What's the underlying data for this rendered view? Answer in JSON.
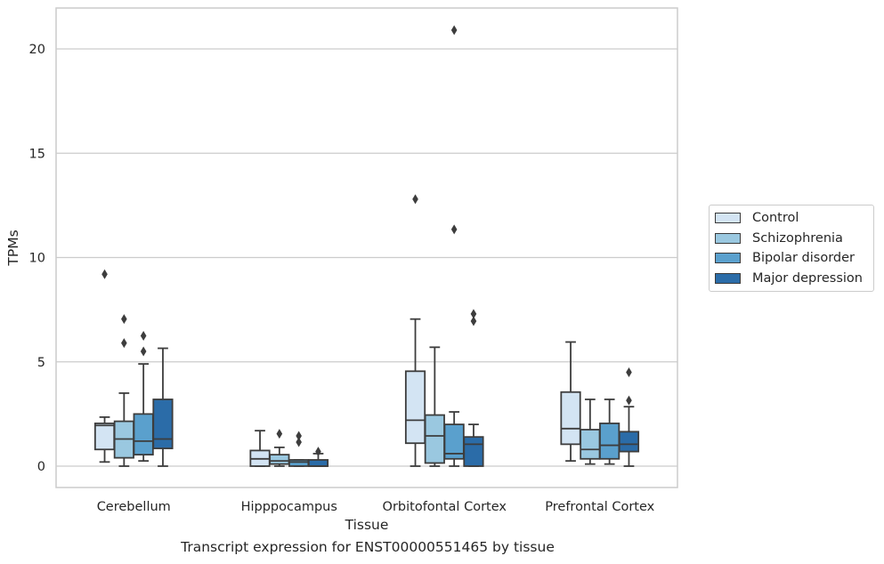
{
  "chart_data": {
    "type": "box",
    "xlabel": "Tissue",
    "ylabel": "TPMs",
    "caption": "Transcript expression for ENST00000551465 by tissue",
    "ylim": [
      -1,
      22
    ],
    "yticks": [
      0,
      5,
      10,
      15,
      20
    ],
    "grid": true,
    "legend_position": "right",
    "categories": [
      "Cerebellum",
      "Hipppocampus",
      "Orbitofontal Cortex",
      "Prefrontal Cortex"
    ],
    "series": [
      {
        "name": "Control",
        "color": "#d3e4f3",
        "boxes": [
          {
            "whislo": 0.2,
            "q1": 0.8,
            "med": 1.95,
            "q3": 2.05,
            "whishi": 2.35,
            "fliers": [
              9.2
            ]
          },
          {
            "whislo": 0.0,
            "q1": 0.0,
            "med": 0.35,
            "q3": 0.75,
            "whishi": 1.7,
            "fliers": []
          },
          {
            "whislo": 0.0,
            "q1": 1.1,
            "med": 2.2,
            "q3": 4.55,
            "whishi": 7.05,
            "fliers": [
              12.8
            ]
          },
          {
            "whislo": 0.25,
            "q1": 1.05,
            "med": 1.8,
            "q3": 3.55,
            "whishi": 5.95,
            "fliers": []
          }
        ]
      },
      {
        "name": "Schizophrenia",
        "color": "#9ac8e0",
        "boxes": [
          {
            "whislo": 0.0,
            "q1": 0.4,
            "med": 1.3,
            "q3": 2.15,
            "whishi": 3.5,
            "fliers": [
              5.9,
              7.05
            ]
          },
          {
            "whislo": 0.0,
            "q1": 0.1,
            "med": 0.25,
            "q3": 0.55,
            "whishi": 0.9,
            "fliers": [
              1.55
            ]
          },
          {
            "whislo": 0.0,
            "q1": 0.15,
            "med": 1.45,
            "q3": 2.45,
            "whishi": 5.7,
            "fliers": []
          },
          {
            "whislo": 0.1,
            "q1": 0.35,
            "med": 0.8,
            "q3": 1.75,
            "whishi": 3.2,
            "fliers": []
          }
        ]
      },
      {
        "name": "Bipolar disorder",
        "color": "#5aa0cd",
        "boxes": [
          {
            "whislo": 0.25,
            "q1": 0.55,
            "med": 1.2,
            "q3": 2.5,
            "whishi": 4.9,
            "fliers": [
              5.5,
              6.25
            ]
          },
          {
            "whislo": 0.0,
            "q1": 0.0,
            "med": 0.2,
            "q3": 0.3,
            "whishi": 0.3,
            "fliers": [
              1.15,
              1.45
            ]
          },
          {
            "whislo": 0.0,
            "q1": 0.35,
            "med": 0.6,
            "q3": 2.0,
            "whishi": 2.6,
            "fliers": [
              11.35,
              20.9
            ]
          },
          {
            "whislo": 0.1,
            "q1": 0.35,
            "med": 1.0,
            "q3": 2.05,
            "whishi": 3.2,
            "fliers": []
          }
        ]
      },
      {
        "name": "Major depression",
        "color": "#2b6ca8",
        "boxes": [
          {
            "whislo": 0.0,
            "q1": 0.85,
            "med": 1.3,
            "q3": 3.2,
            "whishi": 5.65,
            "fliers": []
          },
          {
            "whislo": 0.0,
            "q1": 0.0,
            "med": 0.0,
            "q3": 0.3,
            "whishi": 0.6,
            "fliers": [
              0.7
            ]
          },
          {
            "whislo": 0.0,
            "q1": 0.0,
            "med": 1.05,
            "q3": 1.4,
            "whishi": 2.0,
            "fliers": [
              6.95,
              7.3
            ]
          },
          {
            "whislo": 0.0,
            "q1": 0.7,
            "med": 1.05,
            "q3": 1.65,
            "whishi": 2.85,
            "fliers": [
              3.15,
              4.5
            ]
          }
        ]
      }
    ]
  }
}
